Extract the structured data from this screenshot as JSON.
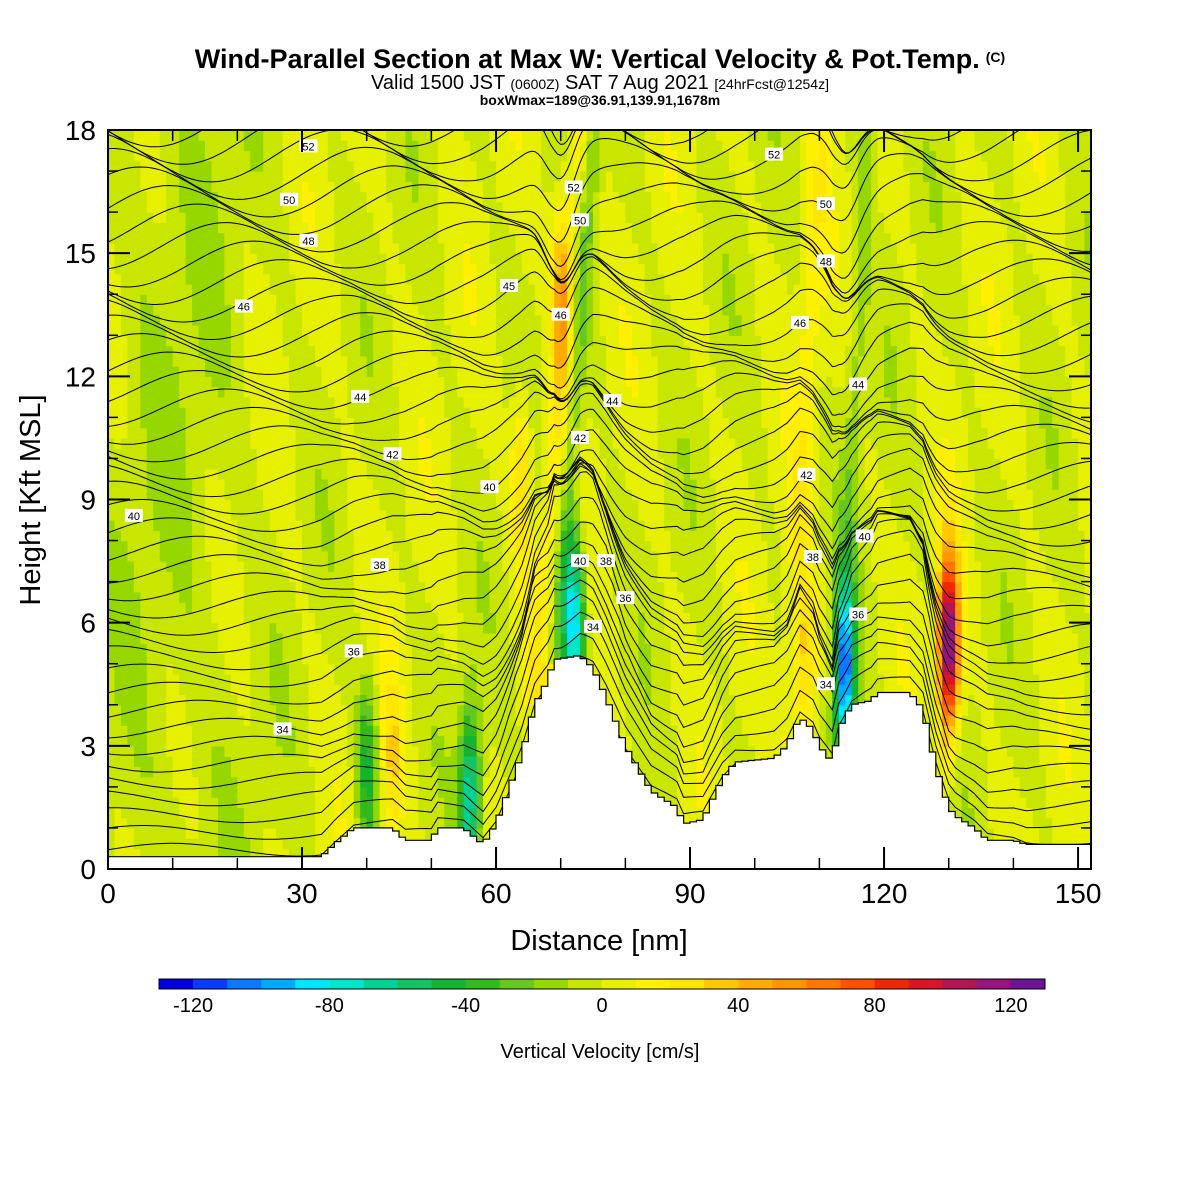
{
  "header": {
    "title": "Wind-Parallel Section at Max W: Vertical Velocity & Pot.Temp.",
    "copyright": "(C)",
    "valid_prefix": "Valid 1500 JST",
    "valid_utc": "(0600Z)",
    "valid_date": "SAT 7 Aug 2021",
    "forecast_tag": "[24hrFcst@1254z]",
    "box_info": "boxWmax=189@36.91,139.91,1678m"
  },
  "colors": {
    "palette": [
      "#0000e0",
      "#0a3cff",
      "#0a78ff",
      "#00aaff",
      "#00e6ff",
      "#00e6c8",
      "#00d296",
      "#14c364",
      "#14b432",
      "#32b91e",
      "#64c81e",
      "#96d700",
      "#c8e600",
      "#e6f000",
      "#fff000",
      "#ffe600",
      "#ffc800",
      "#ffaa00",
      "#ff9600",
      "#ff7800",
      "#ff5000",
      "#f02800",
      "#dc1428",
      "#b41450",
      "#96147d",
      "#6e1496"
    ],
    "terrain": "#ffffff",
    "contour": "#000000"
  },
  "chart_data": {
    "type": "heatmap",
    "xlabel": "Distance [nm]",
    "ylabel": "Height [Kft MSL]",
    "xlim": [
      0,
      152
    ],
    "ylim": [
      0,
      18
    ],
    "xticks": [
      0,
      30,
      60,
      90,
      120,
      150
    ],
    "yticks": [
      0,
      3,
      6,
      9,
      12,
      15,
      18
    ],
    "colorbar": {
      "label": "Vertical Velocity [cm/s]",
      "ticks": [
        -120,
        -80,
        -40,
        0,
        40,
        80,
        120
      ],
      "range": [
        -130,
        130
      ]
    },
    "terrain_kft": [
      [
        0,
        0.3
      ],
      [
        33,
        0.3
      ],
      [
        35,
        0.6
      ],
      [
        38,
        1.0
      ],
      [
        44,
        1.0
      ],
      [
        46,
        0.7
      ],
      [
        50,
        0.7
      ],
      [
        51,
        1.0
      ],
      [
        55,
        1.0
      ],
      [
        58,
        0.6
      ],
      [
        60,
        1.1
      ],
      [
        64,
        2.8
      ],
      [
        66,
        4.0
      ],
      [
        68,
        4.6
      ],
      [
        69,
        5.1
      ],
      [
        73,
        5.2
      ],
      [
        75,
        4.9
      ],
      [
        77,
        4.2
      ],
      [
        80,
        3.0
      ],
      [
        84,
        1.9
      ],
      [
        88,
        1.5
      ],
      [
        89,
        1.1
      ],
      [
        92,
        1.2
      ],
      [
        95,
        2.2
      ],
      [
        97,
        2.6
      ],
      [
        103,
        2.7
      ],
      [
        105,
        3.0
      ],
      [
        107,
        3.7
      ],
      [
        109,
        3.4
      ],
      [
        110,
        3.0
      ],
      [
        112,
        2.6
      ],
      [
        113,
        3.4
      ],
      [
        115,
        4.0
      ],
      [
        118,
        4.1
      ],
      [
        119,
        4.3
      ],
      [
        124,
        4.3
      ],
      [
        126,
        3.9
      ],
      [
        128,
        2.5
      ],
      [
        130,
        1.5
      ],
      [
        131,
        1.3
      ],
      [
        134,
        1.0
      ],
      [
        136,
        0.7
      ],
      [
        140,
        0.7
      ],
      [
        142,
        0.6
      ],
      [
        152,
        0.6
      ]
    ],
    "velocity_features": [
      {
        "x": 72,
        "z": 6.0,
        "w": -90
      },
      {
        "x": 114,
        "z": 4.8,
        "w": -100
      },
      {
        "x": 56,
        "z": 1.8,
        "w": -70
      },
      {
        "x": 40,
        "z": 2.4,
        "w": -45
      },
      {
        "x": 130,
        "z": 5.5,
        "w": 130
      },
      {
        "x": 44,
        "z": 2.4,
        "w": 30
      },
      {
        "x": 108,
        "z": 5.0,
        "w": 35
      },
      {
        "x": 70,
        "z": 14.0,
        "w": 45
      },
      {
        "x": 64,
        "z": 9.5,
        "w": 35
      }
    ],
    "isentropes_K_label": [
      {
        "label": "52",
        "x": 31,
        "z": 17.6
      },
      {
        "label": "50",
        "x": 28,
        "z": 16.3
      },
      {
        "label": "48",
        "x": 31,
        "z": 15.3
      },
      {
        "label": "46",
        "x": 21,
        "z": 13.7
      },
      {
        "label": "44",
        "x": 39,
        "z": 11.5
      },
      {
        "label": "42",
        "x": 44,
        "z": 10.1
      },
      {
        "label": "40",
        "x": 4,
        "z": 8.6
      },
      {
        "label": "38",
        "x": 42,
        "z": 7.4
      },
      {
        "label": "36",
        "x": 38,
        "z": 5.3
      },
      {
        "label": "34",
        "x": 27,
        "z": 3.4
      },
      {
        "label": "45",
        "x": 62,
        "z": 14.2
      },
      {
        "label": "52",
        "x": 72,
        "z": 16.6
      },
      {
        "label": "50",
        "x": 73,
        "z": 15.8
      },
      {
        "label": "46",
        "x": 70,
        "z": 13.5
      },
      {
        "label": "44",
        "x": 78,
        "z": 11.4
      },
      {
        "label": "42",
        "x": 73,
        "z": 10.5
      },
      {
        "label": "40",
        "x": 59,
        "z": 9.3
      },
      {
        "label": "40",
        "x": 73,
        "z": 7.5
      },
      {
        "label": "38",
        "x": 77,
        "z": 7.5
      },
      {
        "label": "36",
        "x": 80,
        "z": 6.6
      },
      {
        "label": "34",
        "x": 75,
        "z": 5.9
      },
      {
        "label": "52",
        "x": 103,
        "z": 17.4
      },
      {
        "label": "50",
        "x": 111,
        "z": 16.2
      },
      {
        "label": "48",
        "x": 111,
        "z": 14.8
      },
      {
        "label": "46",
        "x": 107,
        "z": 13.3
      },
      {
        "label": "44",
        "x": 116,
        "z": 11.8
      },
      {
        "label": "42",
        "x": 108,
        "z": 9.6
      },
      {
        "label": "40",
        "x": 117,
        "z": 8.1
      },
      {
        "label": "38",
        "x": 109,
        "z": 7.6
      },
      {
        "label": "36",
        "x": 116,
        "z": 6.2
      },
      {
        "label": "34",
        "x": 111,
        "z": 4.5
      }
    ]
  }
}
